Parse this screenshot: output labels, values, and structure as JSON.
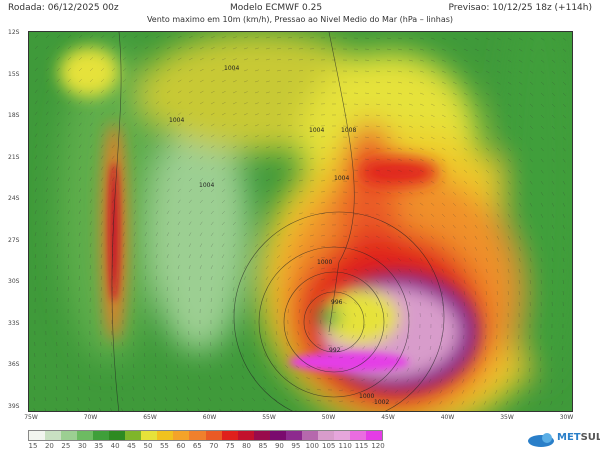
{
  "header": {
    "run": "Rodada: 06/12/2025 00z",
    "model": "Modelo ECMWF 0.25",
    "forecast": "Previsao: 10/12/25 18z (+114h)",
    "subtitle": "Vento maximo em 10m (km/h), Pressao ao Nivel Medio do Mar (hPa – linhas)"
  },
  "map": {
    "lat_labels": [
      "12S",
      "15S",
      "18S",
      "21S",
      "24S",
      "27S",
      "30S",
      "33S",
      "36S",
      "39S"
    ],
    "lon_labels": [
      "75W",
      "70W",
      "65W",
      "60W",
      "55W",
      "50W",
      "45W",
      "40W",
      "35W",
      "30W"
    ],
    "isobar_labels": [
      "1004",
      "1008",
      "1004",
      "1004",
      "1004",
      "1004",
      "1000",
      "996",
      "992",
      "1000",
      "1002"
    ]
  },
  "colorbar": {
    "labels": [
      "15",
      "20",
      "25",
      "30",
      "35",
      "40",
      "45",
      "50",
      "55",
      "60",
      "65",
      "70",
      "75",
      "80",
      "85",
      "90",
      "95",
      "100",
      "105",
      "110",
      "115",
      "120"
    ],
    "colors": [
      "#f2f5ef",
      "#c9e0c2",
      "#9ccf92",
      "#6dbb62",
      "#3f9f3a",
      "#2e8a22",
      "#7fb52a",
      "#e6e23a",
      "#f1c21f",
      "#f4a329",
      "#f0802c",
      "#ea5a25",
      "#e0201c",
      "#c3102c",
      "#990a4c",
      "#7a0a6e",
      "#8d2a8e",
      "#b668ad",
      "#d89ccb",
      "#e6a6dc",
      "#ea6ce0",
      "#e43ce6"
    ]
  },
  "logo": {
    "text_a": "MET",
    "text_b": "SUL"
  }
}
